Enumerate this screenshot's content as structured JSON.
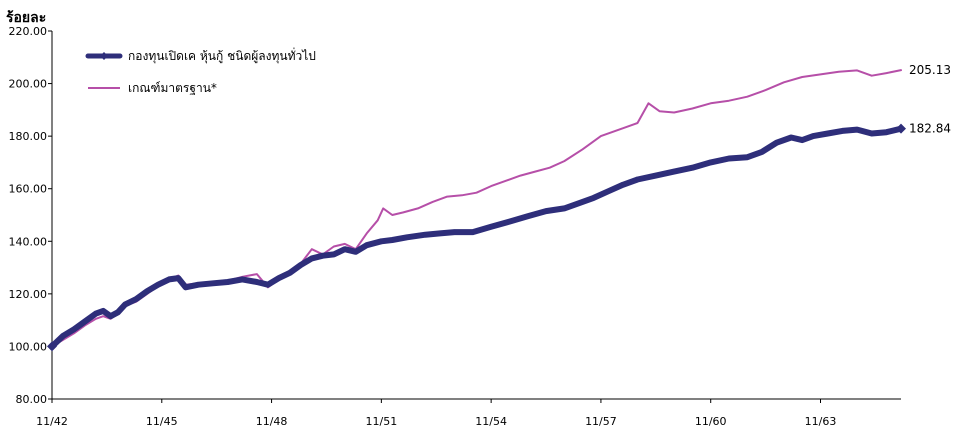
{
  "chart_data": {
    "type": "line",
    "ylabel": "ร้อยละ",
    "ylim": [
      80,
      220
    ],
    "yticks": [
      "80.00",
      "100.00",
      "120.00",
      "140.00",
      "160.00",
      "180.00",
      "200.00",
      "220.00"
    ],
    "xlim": [
      0,
      23.2
    ],
    "xticks": [
      {
        "x": 0,
        "label": "11/42"
      },
      {
        "x": 3,
        "label": "11/45"
      },
      {
        "x": 6,
        "label": "11/48"
      },
      {
        "x": 9,
        "label": "11/51"
      },
      {
        "x": 12,
        "label": "11/54"
      },
      {
        "x": 15,
        "label": "11/57"
      },
      {
        "x": 18,
        "label": "11/60"
      },
      {
        "x": 21,
        "label": "11/63"
      }
    ],
    "legend_position": "top-left",
    "series": [
      {
        "name": "กองทุนเปิดเค หุ้นกู้ ชนิดผู้ลงทุนทั่วไป",
        "color": "#2e2e7a",
        "end_label": "182.84",
        "x": [
          0,
          0.3,
          0.6,
          0.9,
          1.2,
          1.4,
          1.6,
          1.8,
          2.0,
          2.3,
          2.6,
          2.9,
          3.2,
          3.45,
          3.65,
          4.0,
          4.4,
          4.8,
          5.2,
          5.6,
          5.9,
          6.2,
          6.5,
          6.8,
          7.1,
          7.4,
          7.7,
          8.0,
          8.3,
          8.6,
          9.0,
          9.3,
          9.7,
          10.2,
          10.6,
          11.0,
          11.5,
          12.0,
          12.5,
          13.0,
          13.5,
          14.0,
          14.4,
          14.8,
          15.2,
          15.6,
          16.0,
          16.5,
          17.0,
          17.5,
          18.0,
          18.5,
          19.0,
          19.4,
          19.8,
          20.2,
          20.5,
          20.8,
          21.2,
          21.6,
          22.0,
          22.4,
          22.8,
          23.2
        ],
        "y": [
          100.0,
          104.0,
          106.5,
          109.5,
          112.5,
          113.5,
          111.5,
          113.0,
          116.0,
          118.0,
          121.0,
          123.5,
          125.5,
          126.0,
          122.5,
          123.5,
          124.0,
          124.5,
          125.5,
          124.5,
          123.5,
          126.0,
          128.0,
          131.0,
          133.5,
          134.5,
          135.0,
          137.0,
          136.0,
          138.5,
          140.0,
          140.5,
          141.5,
          142.5,
          143.0,
          143.5,
          143.5,
          145.5,
          147.5,
          149.5,
          151.5,
          152.5,
          154.5,
          156.5,
          159.0,
          161.5,
          163.5,
          165.0,
          166.5,
          168.0,
          170.0,
          171.5,
          172.0,
          174.0,
          177.5,
          179.5,
          178.5,
          180.0,
          181.0,
          182.0,
          182.5,
          181.0,
          181.5,
          182.84
        ]
      },
      {
        "name": "เกณฑ์มาตรฐาน*",
        "color": "#b64fa8",
        "end_label": "205.13",
        "x": [
          0,
          0.3,
          0.6,
          0.9,
          1.2,
          1.4,
          1.6,
          1.8,
          2.0,
          2.3,
          2.6,
          2.9,
          3.2,
          3.45,
          3.65,
          4.0,
          4.4,
          4.8,
          5.2,
          5.6,
          5.9,
          6.2,
          6.5,
          6.8,
          7.1,
          7.4,
          7.7,
          8.0,
          8.3,
          8.6,
          8.9,
          9.05,
          9.3,
          9.6,
          10.0,
          10.4,
          10.8,
          11.2,
          11.6,
          12.0,
          12.4,
          12.8,
          13.2,
          13.6,
          14.0,
          14.5,
          15.0,
          15.5,
          16.0,
          16.3,
          16.6,
          17.0,
          17.5,
          18.0,
          18.5,
          19.0,
          19.5,
          20.0,
          20.5,
          21.0,
          21.5,
          22.0,
          22.4,
          22.8,
          23.2
        ],
        "y": [
          100.0,
          102.5,
          105.0,
          108.0,
          110.5,
          111.5,
          110.5,
          112.5,
          115.5,
          117.0,
          120.0,
          123.0,
          125.5,
          127.0,
          123.5,
          124.0,
          124.0,
          125.0,
          126.5,
          127.5,
          122.5,
          125.5,
          128.0,
          131.5,
          137.0,
          135.0,
          138.0,
          139.0,
          137.0,
          143.0,
          148.0,
          152.5,
          150.0,
          151.0,
          152.5,
          155.0,
          157.0,
          157.5,
          158.5,
          161.0,
          163.0,
          165.0,
          166.5,
          168.0,
          170.5,
          175.0,
          180.0,
          182.5,
          185.0,
          192.5,
          189.5,
          189.0,
          190.5,
          192.5,
          193.5,
          195.0,
          197.5,
          200.5,
          202.5,
          203.5,
          204.5,
          205.0,
          203.0,
          204.0,
          205.13
        ]
      }
    ]
  }
}
